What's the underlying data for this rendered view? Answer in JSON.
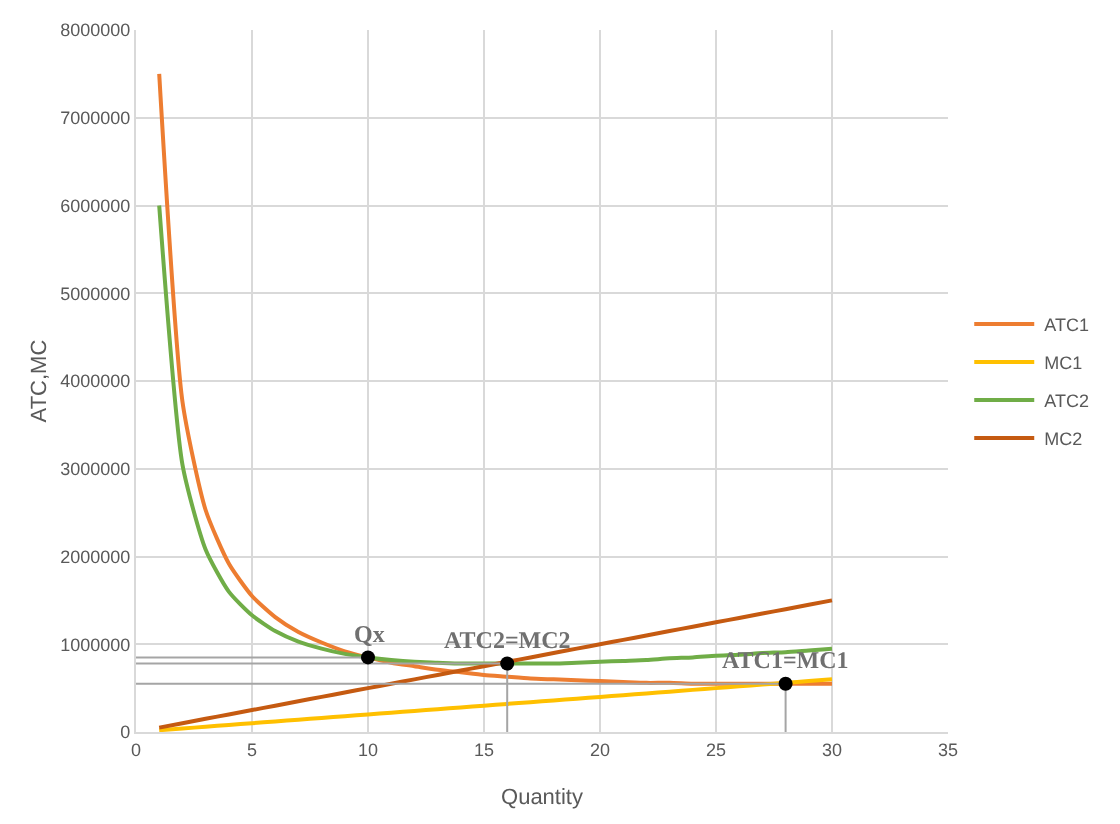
{
  "chart_data": {
    "type": "line",
    "xlabel": "Quantity",
    "ylabel": "ATC,MC",
    "x": [
      1,
      2,
      3,
      4,
      5,
      6,
      7,
      8,
      9,
      10,
      11,
      12,
      13,
      14,
      15,
      16,
      17,
      18,
      19,
      20,
      21,
      22,
      23,
      24,
      25,
      26,
      27,
      28,
      29,
      30
    ],
    "series": [
      {
        "name": "ATC1",
        "color": "#ed7d31",
        "values": [
          7500000,
          3770000,
          2530000,
          1920000,
          1550000,
          1310000,
          1140000,
          1020000,
          920000,
          850000,
          790000,
          750000,
          710000,
          680000,
          650000,
          630000,
          610000,
          600000,
          590000,
          580000,
          570000,
          560000,
          560000,
          550000,
          550000,
          550000,
          550000,
          550000,
          550000,
          550000
        ]
      },
      {
        "name": "MC1",
        "color": "#ffc000",
        "values": [
          20000,
          40000,
          60000,
          80000,
          100000,
          120000,
          140000,
          160000,
          180000,
          200000,
          220000,
          240000,
          260000,
          280000,
          300000,
          320000,
          340000,
          360000,
          380000,
          400000,
          420000,
          440000,
          460000,
          480000,
          500000,
          520000,
          540000,
          560000,
          580000,
          600000
        ]
      },
      {
        "name": "ATC2",
        "color": "#70ad47",
        "values": [
          6000000,
          3050000,
          2080000,
          1600000,
          1330000,
          1150000,
          1030000,
          950000,
          890000,
          850000,
          820000,
          800000,
          790000,
          780000,
          780000,
          780000,
          780000,
          780000,
          790000,
          800000,
          810000,
          820000,
          840000,
          850000,
          870000,
          880000,
          900000,
          910000,
          930000,
          950000
        ]
      },
      {
        "name": "MC2",
        "color": "#c55a11",
        "values": [
          50000,
          100000,
          150000,
          200000,
          250000,
          300000,
          350000,
          400000,
          450000,
          500000,
          550000,
          600000,
          650000,
          700000,
          750000,
          800000,
          850000,
          900000,
          950000,
          1000000,
          1050000,
          1100000,
          1150000,
          1200000,
          1250000,
          1300000,
          1350000,
          1400000,
          1450000,
          1500000
        ]
      },
      {
        "color": "#a5a5a5",
        "x": [
          0,
          10
        ],
        "values": [
          850000,
          850000
        ]
      },
      {
        "color": "#a5a5a5",
        "x": [
          0,
          16,
          16
        ],
        "values": [
          780000,
          780000,
          0
        ]
      },
      {
        "color": "#a5a5a5",
        "x": [
          0,
          28,
          28
        ],
        "values": [
          550000,
          550000,
          0
        ]
      },
      {
        "type": "scatter",
        "marker": "circle",
        "color": "#000000",
        "x": [
          10,
          16,
          28
        ],
        "values": [
          850000,
          780000,
          550000
        ]
      }
    ],
    "annotations": [
      {
        "text": "Qx",
        "x": 10,
        "y": 850000
      },
      {
        "text": "ATC2=MC2",
        "x": 16,
        "y": 780000
      },
      {
        "text": "ATC1=MC1",
        "x": 28,
        "y": 550000
      }
    ],
    "xlim": [
      0,
      35
    ],
    "xticks": [
      0,
      5,
      10,
      15,
      20,
      25,
      30,
      35
    ],
    "ylim": [
      0,
      8000000
    ],
    "yticks": [
      0,
      1000000,
      2000000,
      3000000,
      4000000,
      5000000,
      6000000,
      7000000,
      8000000
    ],
    "grid": true,
    "legend": "right",
    "line_style": "solid"
  }
}
